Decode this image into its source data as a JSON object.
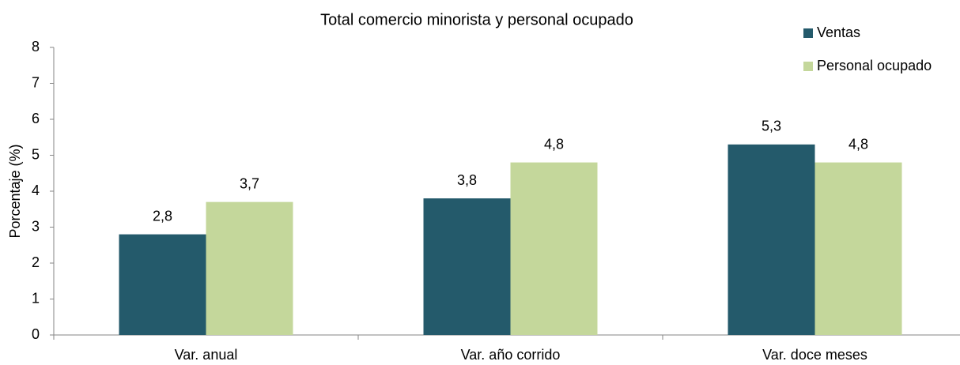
{
  "chart_data": {
    "type": "bar",
    "title": "Total comercio minorista y personal ocupado",
    "y_label": "Porcentaje (%)",
    "categories": [
      "Var. anual",
      "Var. año corrido",
      "Var. doce meses"
    ],
    "series": [
      {
        "name": "Ventas",
        "color": "#245a6b",
        "values": [
          2.8,
          3.8,
          5.3
        ],
        "value_labels": [
          "2,8",
          "3,8",
          "5,3"
        ]
      },
      {
        "name": "Personal ocupado",
        "color": "#c4d79b",
        "values": [
          3.7,
          4.8,
          4.8
        ],
        "value_labels": [
          "3,7",
          "4,8",
          "4,8"
        ]
      }
    ],
    "ylim": [
      0,
      8
    ],
    "yticks": [
      0,
      1,
      2,
      3,
      4,
      5,
      6,
      7,
      8
    ],
    "grid": false,
    "legend": "top-right"
  }
}
